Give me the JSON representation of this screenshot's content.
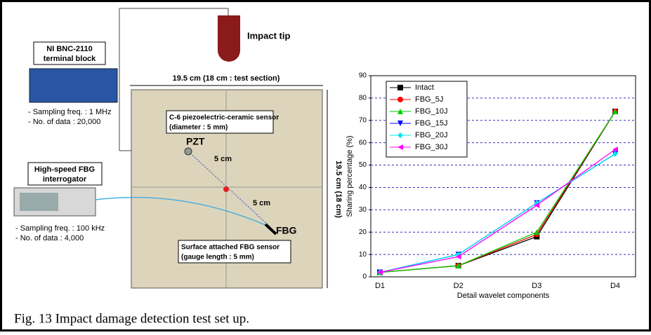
{
  "diagram": {
    "impact_tip": "Impact tip",
    "daq": {
      "title": [
        "NI BNC-2110",
        "terminal block"
      ],
      "specs": [
        "- Sampling freq. : 1 MHz",
        "- No. of data : 20,000"
      ]
    },
    "interrogator": {
      "title": [
        "High-speed FBG",
        "interrogator"
      ],
      "specs": [
        "- Sampling freq. : 100 kHz",
        "- No. of data : 4,000"
      ]
    },
    "width_label": "19.5 cm (18 cm : test section)",
    "height_label": "19.5 cm (18 cm)",
    "pzt_note": [
      "C-6 piezoelectric-ceramic sensor",
      "(diameter : 5 mm)"
    ],
    "pzt": "PZT",
    "distance_1": "5 cm",
    "distance_2": "5 cm",
    "fbg": "FBG",
    "fbg_note": [
      "Surface attached FBG sensor",
      "(gauge length : 5 mm)"
    ]
  },
  "chart_data": {
    "type": "line",
    "x_label": "Detail wavelet components",
    "y_label": "Sharing percentage (%)",
    "categories": [
      "D1",
      "D2",
      "D3",
      "D4"
    ],
    "ylim": [
      0,
      90
    ],
    "yticks": [
      0,
      10,
      20,
      30,
      40,
      50,
      60,
      70,
      80,
      90
    ],
    "grid": true,
    "legend": "top-left",
    "series": [
      {
        "name": "Intact",
        "color": "#000000",
        "marker": "square",
        "values": [
          2,
          5,
          18,
          74
        ]
      },
      {
        "name": "FBG_5J",
        "color": "#ff0000",
        "marker": "circle",
        "values": [
          2,
          5,
          19,
          74
        ]
      },
      {
        "name": "FBG_10J",
        "color": "#00cc00",
        "marker": "triangle-up",
        "values": [
          2,
          5,
          20,
          74
        ]
      },
      {
        "name": "FBG_15J",
        "color": "#0000ff",
        "marker": "triangle-down",
        "values": [
          2,
          10,
          33,
          55
        ]
      },
      {
        "name": "FBG_20J",
        "color": "#00e5ee",
        "marker": "diamond",
        "values": [
          2,
          10,
          33,
          55
        ]
      },
      {
        "name": "FBG_30J",
        "color": "#ff00ff",
        "marker": "triangle-left",
        "values": [
          2,
          9,
          32,
          57
        ]
      }
    ]
  },
  "caption": "Fig. 13    Impact damage detection test set up."
}
